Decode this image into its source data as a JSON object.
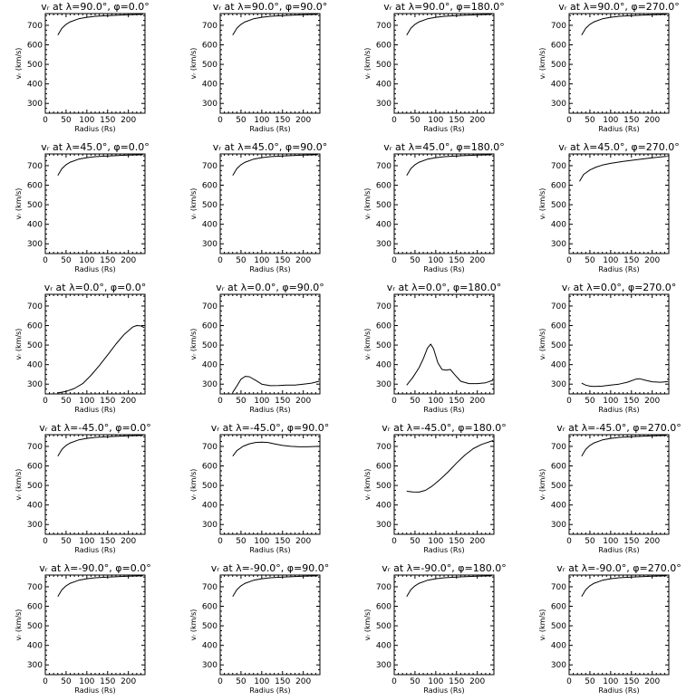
{
  "chart_data": [
    {
      "type": "line",
      "title": "vᵣ at λ=90.0°, φ=0.0°",
      "xlabel": "Radius (Rs)",
      "ylabel": "vᵣ (km/s)",
      "xlim": [
        0,
        240
      ],
      "ylim": [
        250,
        760
      ],
      "xticks": [
        0,
        50,
        100,
        150,
        200
      ],
      "yticks": [
        300,
        400,
        500,
        600,
        700
      ],
      "x": [
        30,
        40,
        50,
        60,
        80,
        100,
        120,
        150,
        200,
        235
      ],
      "y": [
        650,
        685,
        705,
        718,
        733,
        741,
        746,
        750,
        754,
        756
      ]
    },
    {
      "type": "line",
      "title": "vᵣ at λ=90.0°, φ=90.0°",
      "xlabel": "Radius (Rs)",
      "ylabel": "vᵣ (km/s)",
      "xlim": [
        0,
        240
      ],
      "ylim": [
        250,
        760
      ],
      "xticks": [
        0,
        50,
        100,
        150,
        200
      ],
      "yticks": [
        300,
        400,
        500,
        600,
        700
      ],
      "x": [
        30,
        40,
        50,
        60,
        80,
        100,
        120,
        150,
        200,
        235
      ],
      "y": [
        650,
        685,
        705,
        718,
        733,
        741,
        746,
        750,
        754,
        756
      ]
    },
    {
      "type": "line",
      "title": "vᵣ at λ=90.0°, φ=180.0°",
      "xlabel": "Radius (Rs)",
      "ylabel": "vᵣ (km/s)",
      "xlim": [
        0,
        240
      ],
      "ylim": [
        250,
        760
      ],
      "xticks": [
        0,
        50,
        100,
        150,
        200
      ],
      "yticks": [
        300,
        400,
        500,
        600,
        700
      ],
      "x": [
        30,
        40,
        50,
        60,
        80,
        100,
        120,
        150,
        200,
        235
      ],
      "y": [
        650,
        685,
        705,
        718,
        733,
        741,
        746,
        750,
        754,
        756
      ]
    },
    {
      "type": "line",
      "title": "vᵣ at λ=90.0°, φ=270.0°",
      "xlabel": "Radius (Rs)",
      "ylabel": "vᵣ (km/s)",
      "xlim": [
        0,
        240
      ],
      "ylim": [
        250,
        760
      ],
      "xticks": [
        0,
        50,
        100,
        150,
        200
      ],
      "yticks": [
        300,
        400,
        500,
        600,
        700
      ],
      "x": [
        30,
        40,
        50,
        60,
        80,
        100,
        120,
        150,
        200,
        235
      ],
      "y": [
        650,
        685,
        705,
        718,
        733,
        741,
        746,
        750,
        754,
        756
      ]
    },
    {
      "type": "line",
      "title": "vᵣ at λ=45.0°, φ=0.0°",
      "xlabel": "Radius (Rs)",
      "ylabel": "vᵣ (km/s)",
      "xlim": [
        0,
        240
      ],
      "ylim": [
        250,
        760
      ],
      "xticks": [
        0,
        50,
        100,
        150,
        200
      ],
      "yticks": [
        300,
        400,
        500,
        600,
        700
      ],
      "x": [
        30,
        40,
        50,
        60,
        80,
        100,
        120,
        150,
        200,
        235
      ],
      "y": [
        650,
        685,
        705,
        718,
        733,
        741,
        746,
        750,
        754,
        756
      ]
    },
    {
      "type": "line",
      "title": "vᵣ at λ=45.0°, φ=90.0°",
      "xlabel": "Radius (Rs)",
      "ylabel": "vᵣ (km/s)",
      "xlim": [
        0,
        240
      ],
      "ylim": [
        250,
        760
      ],
      "xticks": [
        0,
        50,
        100,
        150,
        200
      ],
      "yticks": [
        300,
        400,
        500,
        600,
        700
      ],
      "x": [
        30,
        40,
        50,
        60,
        80,
        100,
        120,
        150,
        200,
        235
      ],
      "y": [
        650,
        685,
        705,
        718,
        733,
        741,
        746,
        750,
        754,
        756
      ]
    },
    {
      "type": "line",
      "title": "vᵣ at λ=45.0°, φ=180.0°",
      "xlabel": "Radius (Rs)",
      "ylabel": "vᵣ (km/s)",
      "xlim": [
        0,
        240
      ],
      "ylim": [
        250,
        760
      ],
      "xticks": [
        0,
        50,
        100,
        150,
        200
      ],
      "yticks": [
        300,
        400,
        500,
        600,
        700
      ],
      "x": [
        30,
        40,
        50,
        60,
        80,
        100,
        120,
        150,
        200,
        235
      ],
      "y": [
        650,
        685,
        705,
        718,
        733,
        741,
        746,
        750,
        754,
        756
      ]
    },
    {
      "type": "line",
      "title": "vᵣ at λ=45.0°, φ=270.0°",
      "xlabel": "Radius (Rs)",
      "ylabel": "vᵣ (km/s)",
      "xlim": [
        0,
        240
      ],
      "ylim": [
        250,
        760
      ],
      "xticks": [
        0,
        50,
        100,
        150,
        200
      ],
      "yticks": [
        300,
        400,
        500,
        600,
        700
      ],
      "x": [
        25,
        35,
        50,
        65,
        80,
        100,
        130,
        160,
        200,
        235
      ],
      "y": [
        620,
        655,
        678,
        693,
        703,
        712,
        722,
        730,
        740,
        748
      ]
    },
    {
      "type": "line",
      "title": "vᵣ at λ=0.0°, φ=0.0°",
      "xlabel": "Radius (Rs)",
      "ylabel": "vᵣ (km/s)",
      "xlim": [
        0,
        240
      ],
      "ylim": [
        250,
        760
      ],
      "xticks": [
        0,
        50,
        100,
        150,
        200
      ],
      "yticks": [
        300,
        400,
        500,
        600,
        700
      ],
      "x": [
        30,
        50,
        70,
        90,
        110,
        130,
        150,
        170,
        190,
        210,
        220,
        230,
        238
      ],
      "y": [
        255,
        263,
        278,
        303,
        345,
        395,
        450,
        505,
        555,
        592,
        600,
        598,
        590
      ]
    },
    {
      "type": "line",
      "title": "vᵣ at λ=0.0°, φ=90.0°",
      "xlabel": "Radius (Rs)",
      "ylabel": "vᵣ (km/s)",
      "xlim": [
        0,
        240
      ],
      "ylim": [
        250,
        760
      ],
      "xticks": [
        0,
        50,
        100,
        150,
        200
      ],
      "yticks": [
        300,
        400,
        500,
        600,
        700
      ],
      "x": [
        30,
        40,
        50,
        60,
        70,
        85,
        100,
        120,
        140,
        160,
        180,
        200,
        220,
        238
      ],
      "y": [
        258,
        290,
        325,
        340,
        338,
        320,
        300,
        292,
        293,
        295,
        295,
        300,
        305,
        315
      ]
    },
    {
      "type": "line",
      "title": "vᵣ at λ=0.0°, φ=180.0°",
      "xlabel": "Radius (Rs)",
      "ylabel": "vᵣ (km/s)",
      "xlim": [
        0,
        240
      ],
      "ylim": [
        250,
        760
      ],
      "xticks": [
        0,
        50,
        100,
        150,
        200
      ],
      "yticks": [
        300,
        400,
        500,
        600,
        700
      ],
      "x": [
        30,
        45,
        60,
        70,
        80,
        88,
        95,
        105,
        115,
        125,
        135,
        145,
        160,
        180,
        200,
        220,
        238
      ],
      "y": [
        295,
        335,
        385,
        430,
        485,
        505,
        480,
        410,
        375,
        372,
        375,
        350,
        315,
        303,
        303,
        307,
        320
      ]
    },
    {
      "type": "line",
      "title": "vᵣ at λ=0.0°, φ=270.0°",
      "xlabel": "Radius (Rs)",
      "ylabel": "vᵣ (km/s)",
      "xlim": [
        0,
        240
      ],
      "ylim": [
        250,
        760
      ],
      "xticks": [
        0,
        50,
        100,
        150,
        200
      ],
      "yticks": [
        300,
        400,
        500,
        600,
        700
      ],
      "x": [
        30,
        40,
        50,
        60,
        80,
        100,
        120,
        140,
        160,
        170,
        180,
        200,
        220,
        238
      ],
      "y": [
        305,
        295,
        290,
        288,
        290,
        295,
        300,
        310,
        325,
        328,
        322,
        312,
        310,
        313
      ]
    },
    {
      "type": "line",
      "title": "vᵣ at λ=-45.0°, φ=0.0°",
      "xlabel": "Radius (Rs)",
      "ylabel": "vᵣ (km/s)",
      "xlim": [
        0,
        240
      ],
      "ylim": [
        250,
        760
      ],
      "xticks": [
        0,
        50,
        100,
        150,
        200
      ],
      "yticks": [
        300,
        400,
        500,
        600,
        700
      ],
      "x": [
        30,
        40,
        50,
        60,
        80,
        100,
        120,
        150,
        200,
        235
      ],
      "y": [
        650,
        685,
        705,
        718,
        733,
        741,
        746,
        750,
        754,
        756
      ]
    },
    {
      "type": "line",
      "title": "vᵣ at λ=-45.0°, φ=90.0°",
      "xlabel": "Radius (Rs)",
      "ylabel": "vᵣ (km/s)",
      "xlim": [
        0,
        240
      ],
      "ylim": [
        250,
        760
      ],
      "xticks": [
        0,
        50,
        100,
        150,
        200
      ],
      "yticks": [
        300,
        400,
        500,
        600,
        700
      ],
      "x": [
        30,
        40,
        55,
        70,
        85,
        100,
        115,
        130,
        150,
        170,
        190,
        210,
        238
      ],
      "y": [
        650,
        678,
        700,
        713,
        720,
        722,
        720,
        713,
        705,
        700,
        698,
        698,
        700
      ]
    },
    {
      "type": "line",
      "title": "vᵣ at λ=-45.0°, φ=180.0°",
      "xlabel": "Radius (Rs)",
      "ylabel": "vᵣ (km/s)",
      "xlim": [
        0,
        240
      ],
      "ylim": [
        250,
        760
      ],
      "xticks": [
        0,
        50,
        100,
        150,
        200
      ],
      "yticks": [
        300,
        400,
        500,
        600,
        700
      ],
      "x": [
        30,
        45,
        60,
        75,
        90,
        110,
        130,
        150,
        170,
        190,
        210,
        238
      ],
      "y": [
        470,
        467,
        466,
        475,
        495,
        530,
        570,
        615,
        655,
        688,
        710,
        730
      ]
    },
    {
      "type": "line",
      "title": "vᵣ at λ=-45.0°, φ=270.0°",
      "xlabel": "Radius (Rs)",
      "ylabel": "vᵣ (km/s)",
      "xlim": [
        0,
        240
      ],
      "ylim": [
        250,
        760
      ],
      "xticks": [
        0,
        50,
        100,
        150,
        200
      ],
      "yticks": [
        300,
        400,
        500,
        600,
        700
      ],
      "x": [
        30,
        40,
        50,
        60,
        80,
        100,
        120,
        150,
        200,
        235
      ],
      "y": [
        650,
        685,
        705,
        718,
        733,
        741,
        746,
        750,
        754,
        756
      ]
    },
    {
      "type": "line",
      "title": "vᵣ at λ=-90.0°, φ=0.0°",
      "xlabel": "Radius (Rs)",
      "ylabel": "vᵣ (km/s)",
      "xlim": [
        0,
        240
      ],
      "ylim": [
        250,
        760
      ],
      "xticks": [
        0,
        50,
        100,
        150,
        200
      ],
      "yticks": [
        300,
        400,
        500,
        600,
        700
      ],
      "x": [
        30,
        40,
        50,
        60,
        80,
        100,
        120,
        150,
        200,
        235
      ],
      "y": [
        650,
        685,
        705,
        718,
        733,
        741,
        746,
        750,
        754,
        756
      ]
    },
    {
      "type": "line",
      "title": "vᵣ at λ=-90.0°, φ=90.0°",
      "xlabel": "Radius (Rs)",
      "ylabel": "vᵣ (km/s)",
      "xlim": [
        0,
        240
      ],
      "ylim": [
        250,
        760
      ],
      "xticks": [
        0,
        50,
        100,
        150,
        200
      ],
      "yticks": [
        300,
        400,
        500,
        600,
        700
      ],
      "x": [
        30,
        40,
        50,
        60,
        80,
        100,
        120,
        150,
        200,
        235
      ],
      "y": [
        650,
        685,
        705,
        718,
        733,
        741,
        746,
        750,
        754,
        756
      ]
    },
    {
      "type": "line",
      "title": "vᵣ at λ=-90.0°, φ=180.0°",
      "xlabel": "Radius (Rs)",
      "ylabel": "vᵣ (km/s)",
      "xlim": [
        0,
        240
      ],
      "ylim": [
        250,
        760
      ],
      "xticks": [
        0,
        50,
        100,
        150,
        200
      ],
      "yticks": [
        300,
        400,
        500,
        600,
        700
      ],
      "x": [
        30,
        40,
        50,
        60,
        80,
        100,
        120,
        150,
        200,
        235
      ],
      "y": [
        650,
        685,
        705,
        718,
        733,
        741,
        746,
        750,
        754,
        756
      ]
    },
    {
      "type": "line",
      "title": "vᵣ at λ=-90.0°, φ=270.0°",
      "xlabel": "Radius (Rs)",
      "ylabel": "vᵣ (km/s)",
      "xlim": [
        0,
        240
      ],
      "ylim": [
        250,
        760
      ],
      "xticks": [
        0,
        50,
        100,
        150,
        200
      ],
      "yticks": [
        300,
        400,
        500,
        600,
        700
      ],
      "x": [
        30,
        40,
        50,
        60,
        80,
        100,
        120,
        150,
        200,
        235
      ],
      "y": [
        650,
        685,
        705,
        718,
        733,
        741,
        746,
        750,
        754,
        756
      ]
    }
  ]
}
